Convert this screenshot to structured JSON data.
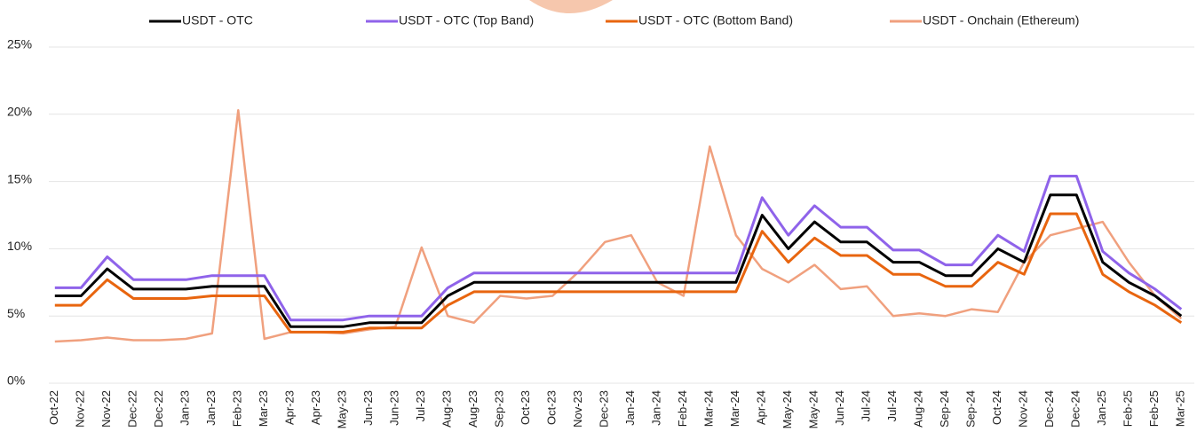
{
  "chart_data": {
    "type": "line",
    "categories": [
      "Oct-22",
      "Nov-22",
      "Nov-22",
      "Dec-22",
      "Dec-22",
      "Jan-23",
      "Jan-23",
      "Feb-23",
      "Mar-23",
      "Apr-23",
      "Apr-23",
      "May-23",
      "Jun-23",
      "Jun-23",
      "Jul-23",
      "Aug-23",
      "Aug-23",
      "Sep-23",
      "Oct-23",
      "Oct-23",
      "Nov-23",
      "Dec-23",
      "Jan-24",
      "Jan-24",
      "Feb-24",
      "Mar-24",
      "Mar-24",
      "Apr-24",
      "May-24",
      "May-24",
      "Jun-24",
      "Jul-24",
      "Jul-24",
      "Aug-24",
      "Sep-24",
      "Sep-24",
      "Oct-24",
      "Nov-24",
      "Dec-24",
      "Dec-24",
      "Jan-25",
      "Feb-25",
      "Feb-25",
      "Mar-25"
    ],
    "series": [
      {
        "name": "USDT - OTC",
        "color": "#000000",
        "values": [
          6.5,
          6.5,
          8.5,
          7.0,
          7.0,
          7.0,
          7.2,
          7.2,
          7.2,
          4.2,
          4.2,
          4.2,
          4.5,
          4.5,
          4.5,
          6.5,
          7.5,
          7.5,
          7.5,
          7.5,
          7.5,
          7.5,
          7.5,
          7.5,
          7.5,
          7.5,
          7.5,
          12.5,
          10.0,
          12.0,
          10.5,
          10.5,
          9.0,
          9.0,
          8.0,
          8.0,
          10.0,
          9.0,
          14.0,
          14.0,
          9.0,
          7.5,
          6.5,
          5.0
        ]
      },
      {
        "name": "USDT - OTC (Top Band)",
        "color": "#8f63ea",
        "values": [
          7.1,
          7.1,
          9.4,
          7.7,
          7.7,
          7.7,
          8.0,
          8.0,
          8.0,
          4.7,
          4.7,
          4.7,
          5.0,
          5.0,
          5.0,
          7.1,
          8.2,
          8.2,
          8.2,
          8.2,
          8.2,
          8.2,
          8.2,
          8.2,
          8.2,
          8.2,
          8.2,
          13.8,
          11.0,
          13.2,
          11.6,
          11.6,
          9.9,
          9.9,
          8.8,
          8.8,
          11.0,
          9.8,
          15.4,
          15.4,
          9.8,
          8.2,
          7.0,
          5.5
        ]
      },
      {
        "name": "USDT - OTC (Bottom Band)",
        "color": "#e8650f",
        "values": [
          5.8,
          5.8,
          7.7,
          6.3,
          6.3,
          6.3,
          6.5,
          6.5,
          6.5,
          3.8,
          3.8,
          3.8,
          4.1,
          4.1,
          4.1,
          5.8,
          6.8,
          6.8,
          6.8,
          6.8,
          6.8,
          6.8,
          6.8,
          6.8,
          6.8,
          6.8,
          6.8,
          11.3,
          9.0,
          10.8,
          9.5,
          9.5,
          8.1,
          8.1,
          7.2,
          7.2,
          9.0,
          8.1,
          12.6,
          12.6,
          8.1,
          6.8,
          5.8,
          4.5
        ]
      },
      {
        "name": "USDT - Onchain (Ethereum)",
        "color": "#f0a07e",
        "values": [
          3.1,
          3.2,
          3.4,
          3.2,
          3.2,
          3.3,
          3.7,
          20.3,
          3.3,
          3.8,
          3.8,
          3.7,
          4.0,
          4.2,
          10.1,
          5.0,
          4.5,
          6.5,
          6.3,
          6.5,
          8.3,
          10.5,
          11.0,
          7.5,
          6.5,
          17.6,
          11.0,
          8.5,
          7.5,
          8.8,
          7.0,
          7.2,
          5.0,
          5.2,
          5.0,
          5.5,
          5.3,
          9.0,
          11.0,
          11.5,
          12.0,
          9.0,
          6.5,
          4.8
        ]
      }
    ],
    "ylim": [
      0,
      25
    ],
    "yticks": [
      {
        "value": 0,
        "label": "0%"
      },
      {
        "value": 5,
        "label": "5%"
      },
      {
        "value": 10,
        "label": "10%"
      },
      {
        "value": 15,
        "label": "15%"
      },
      {
        "value": 20,
        "label": "20%"
      },
      {
        "value": 25,
        "label": "25%"
      }
    ],
    "grid": true
  }
}
